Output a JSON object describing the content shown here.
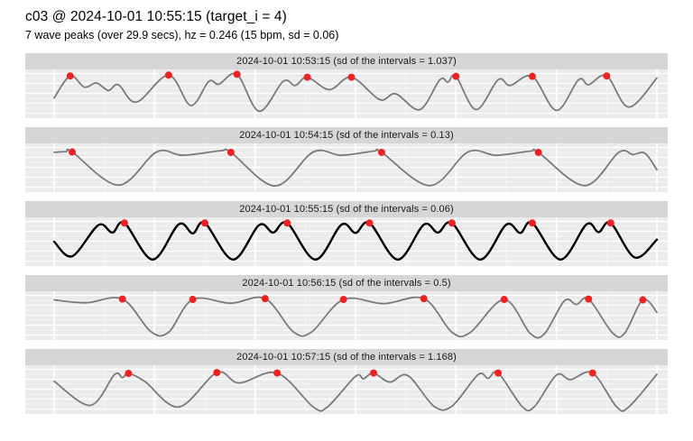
{
  "colors": {
    "strip_bg": "#d6d6d6",
    "panel_bg": "#ebebeb",
    "grid": "#ffffff",
    "wave": "#7a7a7a",
    "wave_target": "#000000",
    "peak_dot": "#ee2222"
  },
  "chart_data": {
    "type": "line",
    "title": "c03 @ 2024-10-01 10:55:15 (target_i = 4)",
    "subtitle": "7 wave peaks (over 29.9 secs), hz = 0.246 (15 bpm, sd = 0.06)",
    "x_unit": "seconds",
    "x_range": [
      0,
      30
    ],
    "axes_visible": false,
    "grid": "white on grey panel, faceted rows",
    "legend": "none",
    "target_panel_index": 2,
    "target_summary": {
      "peaks": 7,
      "window_secs": 29.9,
      "hz": 0.246,
      "bpm": 15,
      "sd": 0.06
    },
    "panels": [
      {
        "label": "2024-10-01 10:53:15 (sd of the intervals = 1.037)",
        "timestamp": "2024-10-01 10:53:15",
        "sd_of_intervals": 1.037,
        "is_target": false,
        "wave": [
          [
            0,
            0.4
          ],
          [
            0.8,
            0.93
          ],
          [
            1.5,
            0.66
          ],
          [
            2.1,
            0.76
          ],
          [
            2.7,
            0.58
          ],
          [
            3.2,
            0.72
          ],
          [
            4.1,
            0.3
          ],
          [
            5.7,
            0.95
          ],
          [
            6.8,
            0.22
          ],
          [
            7.7,
            0.8
          ],
          [
            8.2,
            0.73
          ],
          [
            9.1,
            0.97
          ],
          [
            10.2,
            0.08
          ],
          [
            11.4,
            0.8
          ],
          [
            12.0,
            0.7
          ],
          [
            12.6,
            0.9
          ],
          [
            13.7,
            0.6
          ],
          [
            14.8,
            0.9
          ],
          [
            16.2,
            0.36
          ],
          [
            17.0,
            0.5
          ],
          [
            18.2,
            0.12
          ],
          [
            19.2,
            0.84
          ],
          [
            19.6,
            0.78
          ],
          [
            20.0,
            0.92
          ],
          [
            21.0,
            0.12
          ],
          [
            22.1,
            0.84
          ],
          [
            22.7,
            0.7
          ],
          [
            23.8,
            0.92
          ],
          [
            25.0,
            0.1
          ],
          [
            26.1,
            0.84
          ],
          [
            26.6,
            0.72
          ],
          [
            27.5,
            0.93
          ],
          [
            28.6,
            0.18
          ],
          [
            30,
            0.88
          ]
        ],
        "peaks": [
          [
            0.8,
            0.93
          ],
          [
            5.7,
            0.95
          ],
          [
            9.1,
            0.97
          ],
          [
            12.6,
            0.9
          ],
          [
            14.8,
            0.9
          ],
          [
            20.0,
            0.92
          ],
          [
            23.8,
            0.92
          ],
          [
            27.5,
            0.93
          ]
        ]
      },
      {
        "label": "2024-10-01 10:54:15 (sd of the intervals = 0.13)",
        "timestamp": "2024-10-01 10:54:15",
        "sd_of_intervals": 0.13,
        "is_target": false,
        "wave": [
          [
            0,
            0.87
          ],
          [
            0.6,
            0.89
          ],
          [
            0.9,
            0.88
          ],
          [
            3.2,
            0.08
          ],
          [
            5.1,
            0.88
          ],
          [
            6.4,
            0.8
          ],
          [
            8.3,
            0.91
          ],
          [
            8.8,
            0.87
          ],
          [
            11.0,
            0.06
          ],
          [
            12.9,
            0.88
          ],
          [
            14.3,
            0.8
          ],
          [
            15.9,
            0.9
          ],
          [
            16.3,
            0.87
          ],
          [
            18.7,
            0.07
          ],
          [
            20.6,
            0.88
          ],
          [
            22.0,
            0.8
          ],
          [
            23.7,
            0.9
          ],
          [
            24.1,
            0.87
          ],
          [
            26.4,
            0.07
          ],
          [
            28.1,
            0.87
          ],
          [
            28.8,
            0.82
          ],
          [
            29.4,
            0.85
          ],
          [
            30,
            0.45
          ]
        ],
        "peaks": [
          [
            0.9,
            0.88
          ],
          [
            8.8,
            0.87
          ],
          [
            16.3,
            0.87
          ],
          [
            24.1,
            0.87
          ]
        ]
      },
      {
        "label": "2024-10-01 10:55:15 (sd of the intervals = 0.06)",
        "timestamp": "2024-10-01 10:55:15",
        "sd_of_intervals": 0.06,
        "is_target": true,
        "wave": [
          [
            0,
            0.5
          ],
          [
            0.9,
            0.15
          ],
          [
            2.2,
            0.9
          ],
          [
            2.9,
            0.72
          ],
          [
            3.5,
            0.95
          ],
          [
            4.9,
            0.07
          ],
          [
            6.2,
            0.92
          ],
          [
            6.9,
            0.7
          ],
          [
            7.5,
            0.95
          ],
          [
            8.9,
            0.07
          ],
          [
            10.2,
            0.9
          ],
          [
            10.9,
            0.72
          ],
          [
            11.6,
            0.95
          ],
          [
            13.0,
            0.07
          ],
          [
            14.3,
            0.91
          ],
          [
            15.0,
            0.71
          ],
          [
            15.7,
            0.95
          ],
          [
            17.1,
            0.07
          ],
          [
            18.4,
            0.91
          ],
          [
            19.1,
            0.72
          ],
          [
            19.8,
            0.95
          ],
          [
            21.2,
            0.07
          ],
          [
            22.5,
            0.91
          ],
          [
            23.2,
            0.71
          ],
          [
            23.8,
            0.95
          ],
          [
            25.2,
            0.07
          ],
          [
            26.5,
            0.92
          ],
          [
            27.1,
            0.73
          ],
          [
            27.7,
            0.95
          ],
          [
            28.9,
            0.12
          ],
          [
            30,
            0.55
          ]
        ],
        "peaks": [
          [
            3.5,
            0.95
          ],
          [
            7.5,
            0.95
          ],
          [
            11.6,
            0.95
          ],
          [
            15.7,
            0.95
          ],
          [
            19.8,
            0.95
          ],
          [
            23.8,
            0.95
          ],
          [
            27.7,
            0.95
          ]
        ]
      },
      {
        "label": "2024-10-01 10:56:15 (sd of the intervals = 0.5)",
        "timestamp": "2024-10-01 10:56:15",
        "sd_of_intervals": 0.5,
        "is_target": false,
        "wave": [
          [
            0,
            0.88
          ],
          [
            1.6,
            0.81
          ],
          [
            3.4,
            0.9
          ],
          [
            4.8,
            0.12
          ],
          [
            5.7,
            0.1
          ],
          [
            6.9,
            0.89
          ],
          [
            8.8,
            0.8
          ],
          [
            10.5,
            0.91
          ],
          [
            11.9,
            0.11
          ],
          [
            12.8,
            0.1
          ],
          [
            14.4,
            0.89
          ],
          [
            16.4,
            0.79
          ],
          [
            18.4,
            0.91
          ],
          [
            19.8,
            0.1
          ],
          [
            20.7,
            0.09
          ],
          [
            22.4,
            0.89
          ],
          [
            23.7,
            0.07
          ],
          [
            24.4,
            0.06
          ],
          [
            25.4,
            0.86
          ],
          [
            26.0,
            0.77
          ],
          [
            26.6,
            0.9
          ],
          [
            27.8,
            0.08
          ],
          [
            28.4,
            0.08
          ],
          [
            29.3,
            0.88
          ],
          [
            30,
            0.58
          ]
        ],
        "peaks": [
          [
            3.4,
            0.9
          ],
          [
            6.9,
            0.89
          ],
          [
            10.5,
            0.91
          ],
          [
            14.4,
            0.89
          ],
          [
            18.4,
            0.91
          ],
          [
            22.4,
            0.89
          ],
          [
            26.6,
            0.9
          ],
          [
            29.3,
            0.88
          ]
        ]
      },
      {
        "label": "2024-10-01 10:57:15 (sd of the intervals = 1.168)",
        "timestamp": "2024-10-01 10:57:15",
        "sd_of_intervals": 1.168,
        "is_target": false,
        "wave": [
          [
            0,
            0.7
          ],
          [
            1.8,
            0.12
          ],
          [
            3.0,
            0.86
          ],
          [
            3.4,
            0.79
          ],
          [
            3.7,
            0.89
          ],
          [
            4.5,
            0.7
          ],
          [
            6.2,
            0.08
          ],
          [
            8.1,
            0.91
          ],
          [
            9.2,
            0.66
          ],
          [
            11.1,
            0.9
          ],
          [
            12.9,
            0.08
          ],
          [
            13.6,
            0.08
          ],
          [
            15.0,
            0.82
          ],
          [
            15.4,
            0.76
          ],
          [
            15.9,
            0.9
          ],
          [
            16.7,
            0.68
          ],
          [
            17.6,
            0.84
          ],
          [
            18.9,
            0.1
          ],
          [
            19.8,
            0.1
          ],
          [
            21.1,
            0.86
          ],
          [
            21.6,
            0.77
          ],
          [
            22.1,
            0.9
          ],
          [
            23.3,
            0.09
          ],
          [
            23.9,
            0.09
          ],
          [
            25.0,
            0.85
          ],
          [
            25.7,
            0.74
          ],
          [
            26.8,
            0.9
          ],
          [
            28.0,
            0.08
          ],
          [
            28.6,
            0.08
          ],
          [
            30,
            0.87
          ]
        ],
        "peaks": [
          [
            3.7,
            0.89
          ],
          [
            8.1,
            0.91
          ],
          [
            11.1,
            0.9
          ],
          [
            15.9,
            0.9
          ],
          [
            22.1,
            0.9
          ],
          [
            26.8,
            0.9
          ]
        ]
      }
    ]
  }
}
